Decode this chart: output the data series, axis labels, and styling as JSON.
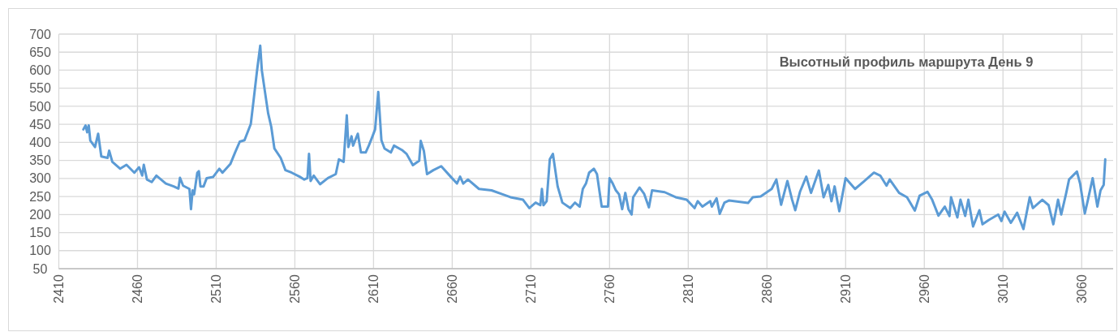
{
  "chart_data": {
    "type": "line",
    "title": "Высотный профиль маршрута День 9",
    "x": [
      2425.6,
      2427,
      2428,
      2429,
      2430,
      2433,
      2435,
      2437,
      2441,
      2442,
      2444,
      2449,
      2453,
      2458,
      2461,
      2463,
      2464,
      2466,
      2469,
      2472,
      2478,
      2483,
      2486,
      2487,
      2489,
      2493,
      2494,
      2495,
      2496,
      2498,
      2499,
      2500,
      2502,
      2504,
      2508,
      2512,
      2514,
      2519,
      2522,
      2525,
      2528,
      2532,
      2534,
      2536,
      2538,
      2539,
      2541,
      2543,
      2545,
      2547,
      2551,
      2554,
      2558,
      2563,
      2566,
      2568,
      2569,
      2570,
      2572,
      2576,
      2581,
      2586,
      2588,
      2591,
      2593,
      2594,
      2596,
      2597,
      2600,
      2602,
      2605,
      2607,
      2609,
      2611,
      2613,
      2615,
      2617,
      2621,
      2623,
      2628,
      2631,
      2635,
      2639,
      2640,
      2642,
      2644,
      2648,
      2653,
      2659,
      2663,
      2665,
      2667,
      2670,
      2677,
      2685,
      2692,
      2697,
      2705,
      2709,
      2713,
      2716,
      2717,
      2718,
      2720,
      2722,
      2724,
      2727,
      2730,
      2735,
      2738,
      2741,
      2743,
      2745,
      2747,
      2750,
      2752,
      2755,
      2759,
      2760,
      2762,
      2764,
      2766,
      2768,
      2770,
      2772,
      2774,
      2775,
      2779,
      2782,
      2785,
      2787,
      2795,
      2802,
      2809,
      2814,
      2816,
      2819,
      2824,
      2825,
      2828,
      2830,
      2833,
      2836,
      2848,
      2851,
      2856,
      2863,
      2866,
      2869,
      2873,
      2876,
      2878,
      2881,
      2885,
      2888,
      2893,
      2896,
      2899,
      2901,
      2903,
      2906,
      2910,
      2916,
      2922,
      2928,
      2932,
      2936,
      2938,
      2944,
      2949,
      2954,
      2957,
      2962,
      2965,
      2969,
      2973,
      2976,
      2977,
      2981,
      2983,
      2986,
      2988,
      2991,
      2995,
      2997,
      3001,
      3007,
      3009,
      3011,
      3015,
      3019,
      3023,
      3027,
      3029,
      3035,
      3039,
      3042,
      3045,
      3047,
      3050,
      3052,
      3057,
      3059,
      3062,
      3064,
      3067,
      3070,
      3072,
      3074,
      3075
    ],
    "series": [
      {
        "color": "#5b9bd5",
        "values": [
          436,
          447,
          428,
          447,
          405,
          387,
          424,
          361,
          357,
          377,
          346,
          327,
          338,
          316,
          331,
          308,
          338,
          297,
          290,
          308,
          286,
          278,
          272,
          302,
          280,
          271,
          215,
          267,
          256,
          316,
          320,
          278,
          278,
          301,
          304,
          327,
          316,
          340,
          372,
          402,
          406,
          451,
          525,
          600,
          668,
          600,
          540,
          481,
          443,
          383,
          357,
          323,
          316,
          305,
          297,
          301,
          368,
          293,
          308,
          284,
          301,
          312,
          353,
          346,
          475,
          387,
          417,
          391,
          424,
          372,
          372,
          391,
          413,
          436,
          540,
          406,
          383,
          372,
          391,
          379,
          368,
          337,
          349,
          404,
          376,
          312,
          323,
          334,
          305,
          286,
          305,
          286,
          297,
          271,
          267,
          256,
          248,
          241,
          218,
          233,
          226,
          271,
          226,
          237,
          353,
          368,
          278,
          233,
          218,
          233,
          222,
          271,
          286,
          316,
          327,
          312,
          222,
          222,
          301,
          286,
          267,
          256,
          215,
          260,
          215,
          200,
          248,
          275,
          257,
          220,
          267,
          262,
          248,
          241,
          218,
          237,
          222,
          237,
          222,
          245,
          202,
          233,
          239,
          232,
          248,
          250,
          271,
          297,
          227,
          293,
          241,
          212,
          263,
          305,
          260,
          322,
          248,
          282,
          237,
          278,
          209,
          301,
          271,
          293,
          316,
          308,
          280,
          297,
          260,
          248,
          211,
          252,
          263,
          241,
          197,
          222,
          196,
          248,
          192,
          241,
          196,
          241,
          167,
          212,
          173,
          185,
          200,
          182,
          208,
          177,
          205,
          160,
          248,
          218,
          241,
          226,
          173,
          241,
          200,
          256,
          297,
          319,
          286,
          203,
          241,
          301,
          222,
          267,
          282,
          353
        ]
      }
    ],
    "xlim": [
      2410,
      3080
    ],
    "xticks": [
      2410,
      2460,
      2510,
      2560,
      2610,
      2660,
      2710,
      2760,
      2810,
      2860,
      2910,
      2960,
      3010,
      3060
    ],
    "ylim": [
      50,
      700
    ],
    "yticks": [
      50,
      100,
      150,
      200,
      250,
      300,
      350,
      400,
      450,
      500,
      550,
      600,
      650,
      700
    ],
    "grid": true,
    "marker": "none",
    "line_style": "solid"
  }
}
